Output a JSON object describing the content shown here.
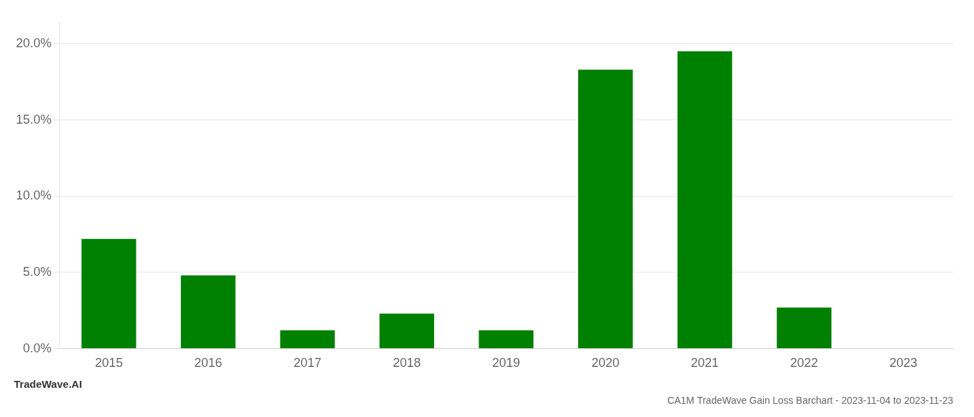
{
  "chart_data": {
    "type": "bar",
    "title": "CA1M TradeWave Gain Loss Barchart - 2023-11-04 to 2023-11-23",
    "annotations": [
      "TradeWave.AI"
    ],
    "categories": [
      "2015",
      "2016",
      "2017",
      "2018",
      "2019",
      "2020",
      "2021",
      "2022",
      "2023"
    ],
    "values": [
      7.2,
      4.8,
      1.2,
      2.3,
      1.2,
      18.3,
      19.5,
      2.7,
      0.0
    ],
    "color": "#008000",
    "ylim": [
      0,
      21.5
    ],
    "yticks": [
      {
        "value": 0.0,
        "label": "0.0%"
      },
      {
        "value": 5.0,
        "label": "5.0%"
      },
      {
        "value": 10.0,
        "label": "10.0%"
      },
      {
        "value": 15.0,
        "label": "15.0%"
      },
      {
        "value": 20.0,
        "label": "20.0%"
      }
    ],
    "grid": true
  }
}
